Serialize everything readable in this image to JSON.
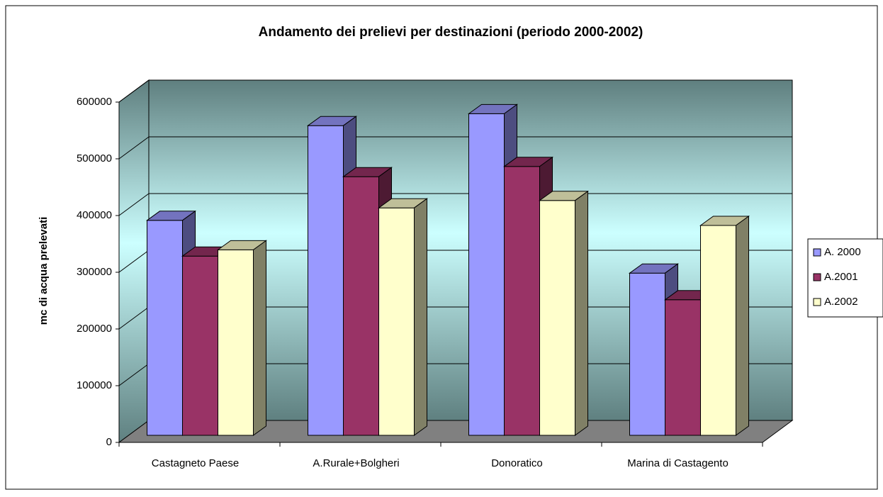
{
  "chart_data": {
    "type": "bar3d",
    "title": "Andamento dei prelievi per destinazioni (periodo 2000-2002)",
    "y_label": "mc di acqua prelevati",
    "categories": [
      "Castagneto Paese",
      "A.Rurale+Bolgheri",
      "Donoratico",
      "Marina di Castagento"
    ],
    "series": [
      {
        "name": "A. 2000",
        "color": "#9999ff",
        "values": [
          379000,
          546000,
          567000,
          286000
        ]
      },
      {
        "name": "A.2001",
        "color": "#993366",
        "values": [
          316000,
          456000,
          474000,
          239000
        ]
      },
      {
        "name": "A.2002",
        "color": "#ffffcc",
        "values": [
          327000,
          401000,
          414000,
          370000
        ]
      }
    ],
    "ylim": [
      0,
      600000
    ],
    "yticks": [
      0,
      100000,
      200000,
      300000,
      400000,
      500000,
      600000
    ],
    "grid": true,
    "legend": "right"
  }
}
